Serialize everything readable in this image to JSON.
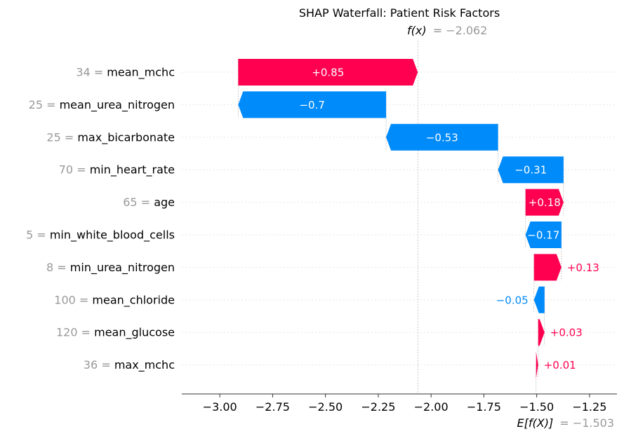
{
  "chart_data": {
    "type": "waterfall",
    "title": "SHAP Waterfall: Patient Risk Factors",
    "fx_label": "f(x)",
    "fx_value_text": "= −2.062",
    "ex_label": "E[f(X)]",
    "ex_value_text": "= −1.503",
    "base_value": -1.503,
    "output_value": -2.062,
    "xlim": [
      -3.18,
      -1.12
    ],
    "x_ticks": [
      -3.0,
      -2.75,
      -2.5,
      -2.25,
      -2.0,
      -1.75,
      -1.5,
      -1.25
    ],
    "x_tick_labels": [
      "−3.00",
      "−2.75",
      "−2.50",
      "−2.25",
      "−2.00",
      "−1.75",
      "−1.50",
      "−1.25"
    ],
    "colors": {
      "positive": "#ff0051",
      "negative": "#008bfb",
      "value_text": "#999999",
      "label_text": "#000000"
    },
    "features": [
      {
        "value_text": "34 =",
        "name": "mean_mchc",
        "contribution": 0.85,
        "label": "+0.85"
      },
      {
        "value_text": "25 =",
        "name": "mean_urea_nitrogen",
        "contribution": -0.7,
        "label": "−0.7"
      },
      {
        "value_text": "25 =",
        "name": "max_bicarbonate",
        "contribution": -0.53,
        "label": "−0.53"
      },
      {
        "value_text": "70 =",
        "name": "min_heart_rate",
        "contribution": -0.31,
        "label": "−0.31"
      },
      {
        "value_text": "65 =",
        "name": "age",
        "contribution": 0.18,
        "label": "+0.18"
      },
      {
        "value_text": "5 =",
        "name": "min_white_blood_cells",
        "contribution": -0.17,
        "label": "−0.17"
      },
      {
        "value_text": "8 =",
        "name": "min_urea_nitrogen",
        "contribution": 0.13,
        "label": "+0.13"
      },
      {
        "value_text": "100 =",
        "name": "mean_chloride",
        "contribution": -0.05,
        "label": "−0.05"
      },
      {
        "value_text": "120 =",
        "name": "mean_glucose",
        "contribution": 0.03,
        "label": "+0.03"
      },
      {
        "value_text": "36 =",
        "name": "max_mchc",
        "contribution": 0.01,
        "label": "+0.01"
      }
    ]
  }
}
